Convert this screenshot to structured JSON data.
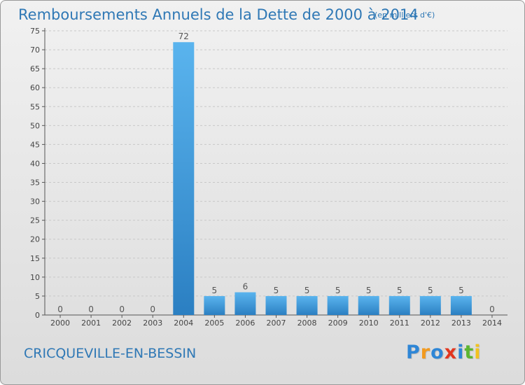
{
  "title": "Remboursements Annuels de la Dette de 2000 à 2014",
  "subtitle": "(en milliers d'€)",
  "footer": {
    "town": "CRICQUEVILLE-EN-BESSIN",
    "logo_text": "Proxiti",
    "logo_letters": [
      {
        "char": "P",
        "color": "#2e86d6"
      },
      {
        "char": "r",
        "color": "#f29a1e"
      },
      {
        "char": "o",
        "color": "#2e86d6"
      },
      {
        "char": "x",
        "color": "#e2361f"
      },
      {
        "char": "i",
        "color": "#2e86d6"
      },
      {
        "char": "t",
        "color": "#5cb531"
      },
      {
        "char": "i",
        "color": "#f2c21e"
      }
    ]
  },
  "colors": {
    "bar_top": "#5ab4ee",
    "bar_bottom": "#2b7fc2",
    "title": "#2f78b5",
    "grid": "#c8c8c8",
    "axis": "#555555"
  },
  "chart_data": {
    "type": "bar",
    "title": "Remboursements Annuels de la Dette de 2000 à 2014",
    "subtitle": "(en milliers d'€)",
    "categories": [
      "2000",
      "2001",
      "2002",
      "2003",
      "2004",
      "2005",
      "2006",
      "2007",
      "2008",
      "2009",
      "2010",
      "2011",
      "2012",
      "2013",
      "2014"
    ],
    "values": [
      0,
      0,
      0,
      0,
      72,
      5,
      6,
      5,
      5,
      5,
      5,
      5,
      5,
      5,
      0
    ],
    "ylim": [
      0,
      75
    ],
    "yticks": [
      0,
      5,
      10,
      15,
      20,
      25,
      30,
      35,
      40,
      45,
      50,
      55,
      60,
      65,
      70,
      75
    ],
    "grid": true,
    "data_labels": true,
    "xlabel": "",
    "ylabel": ""
  }
}
